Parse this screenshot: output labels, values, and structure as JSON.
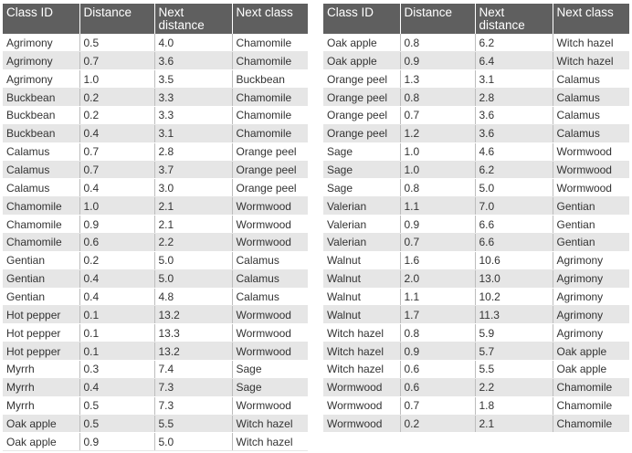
{
  "headers": [
    "Class ID",
    "Distance",
    "Next distance",
    "Next class"
  ],
  "left_rows": [
    [
      "Agrimony",
      "0.5",
      "4.0",
      "Chamomile"
    ],
    [
      "Agrimony",
      "0.7",
      "3.6",
      "Chamomile"
    ],
    [
      "Agrimony",
      "1.0",
      "3.5",
      "Buckbean"
    ],
    [
      "Buckbean",
      "0.2",
      "3.3",
      "Chamomile"
    ],
    [
      "Buckbean",
      "0.2",
      "3.3",
      "Chamomile"
    ],
    [
      "Buckbean",
      "0.4",
      "3.1",
      "Chamomile"
    ],
    [
      "Calamus",
      "0.7",
      "2.8",
      "Orange peel"
    ],
    [
      "Calamus",
      "0.7",
      "3.7",
      "Orange peel"
    ],
    [
      "Calamus",
      "0.4",
      "3.0",
      "Orange peel"
    ],
    [
      "Chamomile",
      "1.0",
      "2.1",
      "Wormwood"
    ],
    [
      "Chamomile",
      "0.9",
      "2.1",
      "Wormwood"
    ],
    [
      "Chamomile",
      "0.6",
      "2.2",
      "Wormwood"
    ],
    [
      "Gentian",
      "0.2",
      "5.0",
      "Calamus"
    ],
    [
      "Gentian",
      "0.4",
      "5.0",
      "Calamus"
    ],
    [
      "Gentian",
      "0.4",
      "4.8",
      "Calamus"
    ],
    [
      "Hot pepper",
      "0.1",
      "13.2",
      "Wormwood"
    ],
    [
      "Hot pepper",
      "0.1",
      "13.3",
      "Wormwood"
    ],
    [
      "Hot pepper",
      "0.1",
      "13.2",
      "Wormwood"
    ],
    [
      "Myrrh",
      "0.3",
      "7.4",
      "Sage"
    ],
    [
      "Myrrh",
      "0.4",
      "7.3",
      "Sage"
    ],
    [
      "Myrrh",
      "0.5",
      "7.3",
      "Wormwood"
    ],
    [
      "Oak apple",
      "0.5",
      "5.5",
      "Witch hazel"
    ],
    [
      "Oak apple",
      "0.9",
      "5.0",
      "Witch hazel"
    ]
  ],
  "right_rows": [
    [
      "Oak apple",
      "0.8",
      "6.2",
      "Witch hazel"
    ],
    [
      "Oak apple",
      "0.9",
      "6.4",
      "Witch hazel"
    ],
    [
      "Orange peel",
      "1.3",
      "3.1",
      "Calamus"
    ],
    [
      "Orange peel",
      "0.8",
      "2.8",
      "Calamus"
    ],
    [
      "Orange peel",
      "0.7",
      "3.6",
      "Calamus"
    ],
    [
      "Orange peel",
      "1.2",
      "3.6",
      "Calamus"
    ],
    [
      "Sage",
      "1.0",
      "4.6",
      "Wormwood"
    ],
    [
      "Sage",
      "1.0",
      "6.2",
      "Wormwood"
    ],
    [
      "Sage",
      "0.8",
      "5.0",
      "Wormwood"
    ],
    [
      "Valerian",
      "1.1",
      "7.0",
      "Gentian"
    ],
    [
      "Valerian",
      "0.9",
      "6.6",
      "Gentian"
    ],
    [
      "Valerian",
      "0.7",
      "6.6",
      "Gentian"
    ],
    [
      "Walnut",
      "1.6",
      "10.6",
      "Agrimony"
    ],
    [
      "Walnut",
      "2.0",
      "13.0",
      "Agrimony"
    ],
    [
      "Walnut",
      "1.1",
      "10.2",
      "Agrimony"
    ],
    [
      "Walnut",
      "1.7",
      "11.3",
      "Agrimony"
    ],
    [
      "Witch hazel",
      "0.8",
      "5.9",
      "Agrimony"
    ],
    [
      "Witch hazel",
      "0.9",
      "5.7",
      "Oak apple"
    ],
    [
      "Witch hazel",
      "0.6",
      "5.5",
      "Oak apple"
    ],
    [
      "Wormwood",
      "0.6",
      "2.2",
      "Chamomile"
    ],
    [
      "Wormwood",
      "0.7",
      "1.8",
      "Chamomile"
    ],
    [
      "Wormwood",
      "0.2",
      "2.1",
      "Chamomile"
    ]
  ]
}
